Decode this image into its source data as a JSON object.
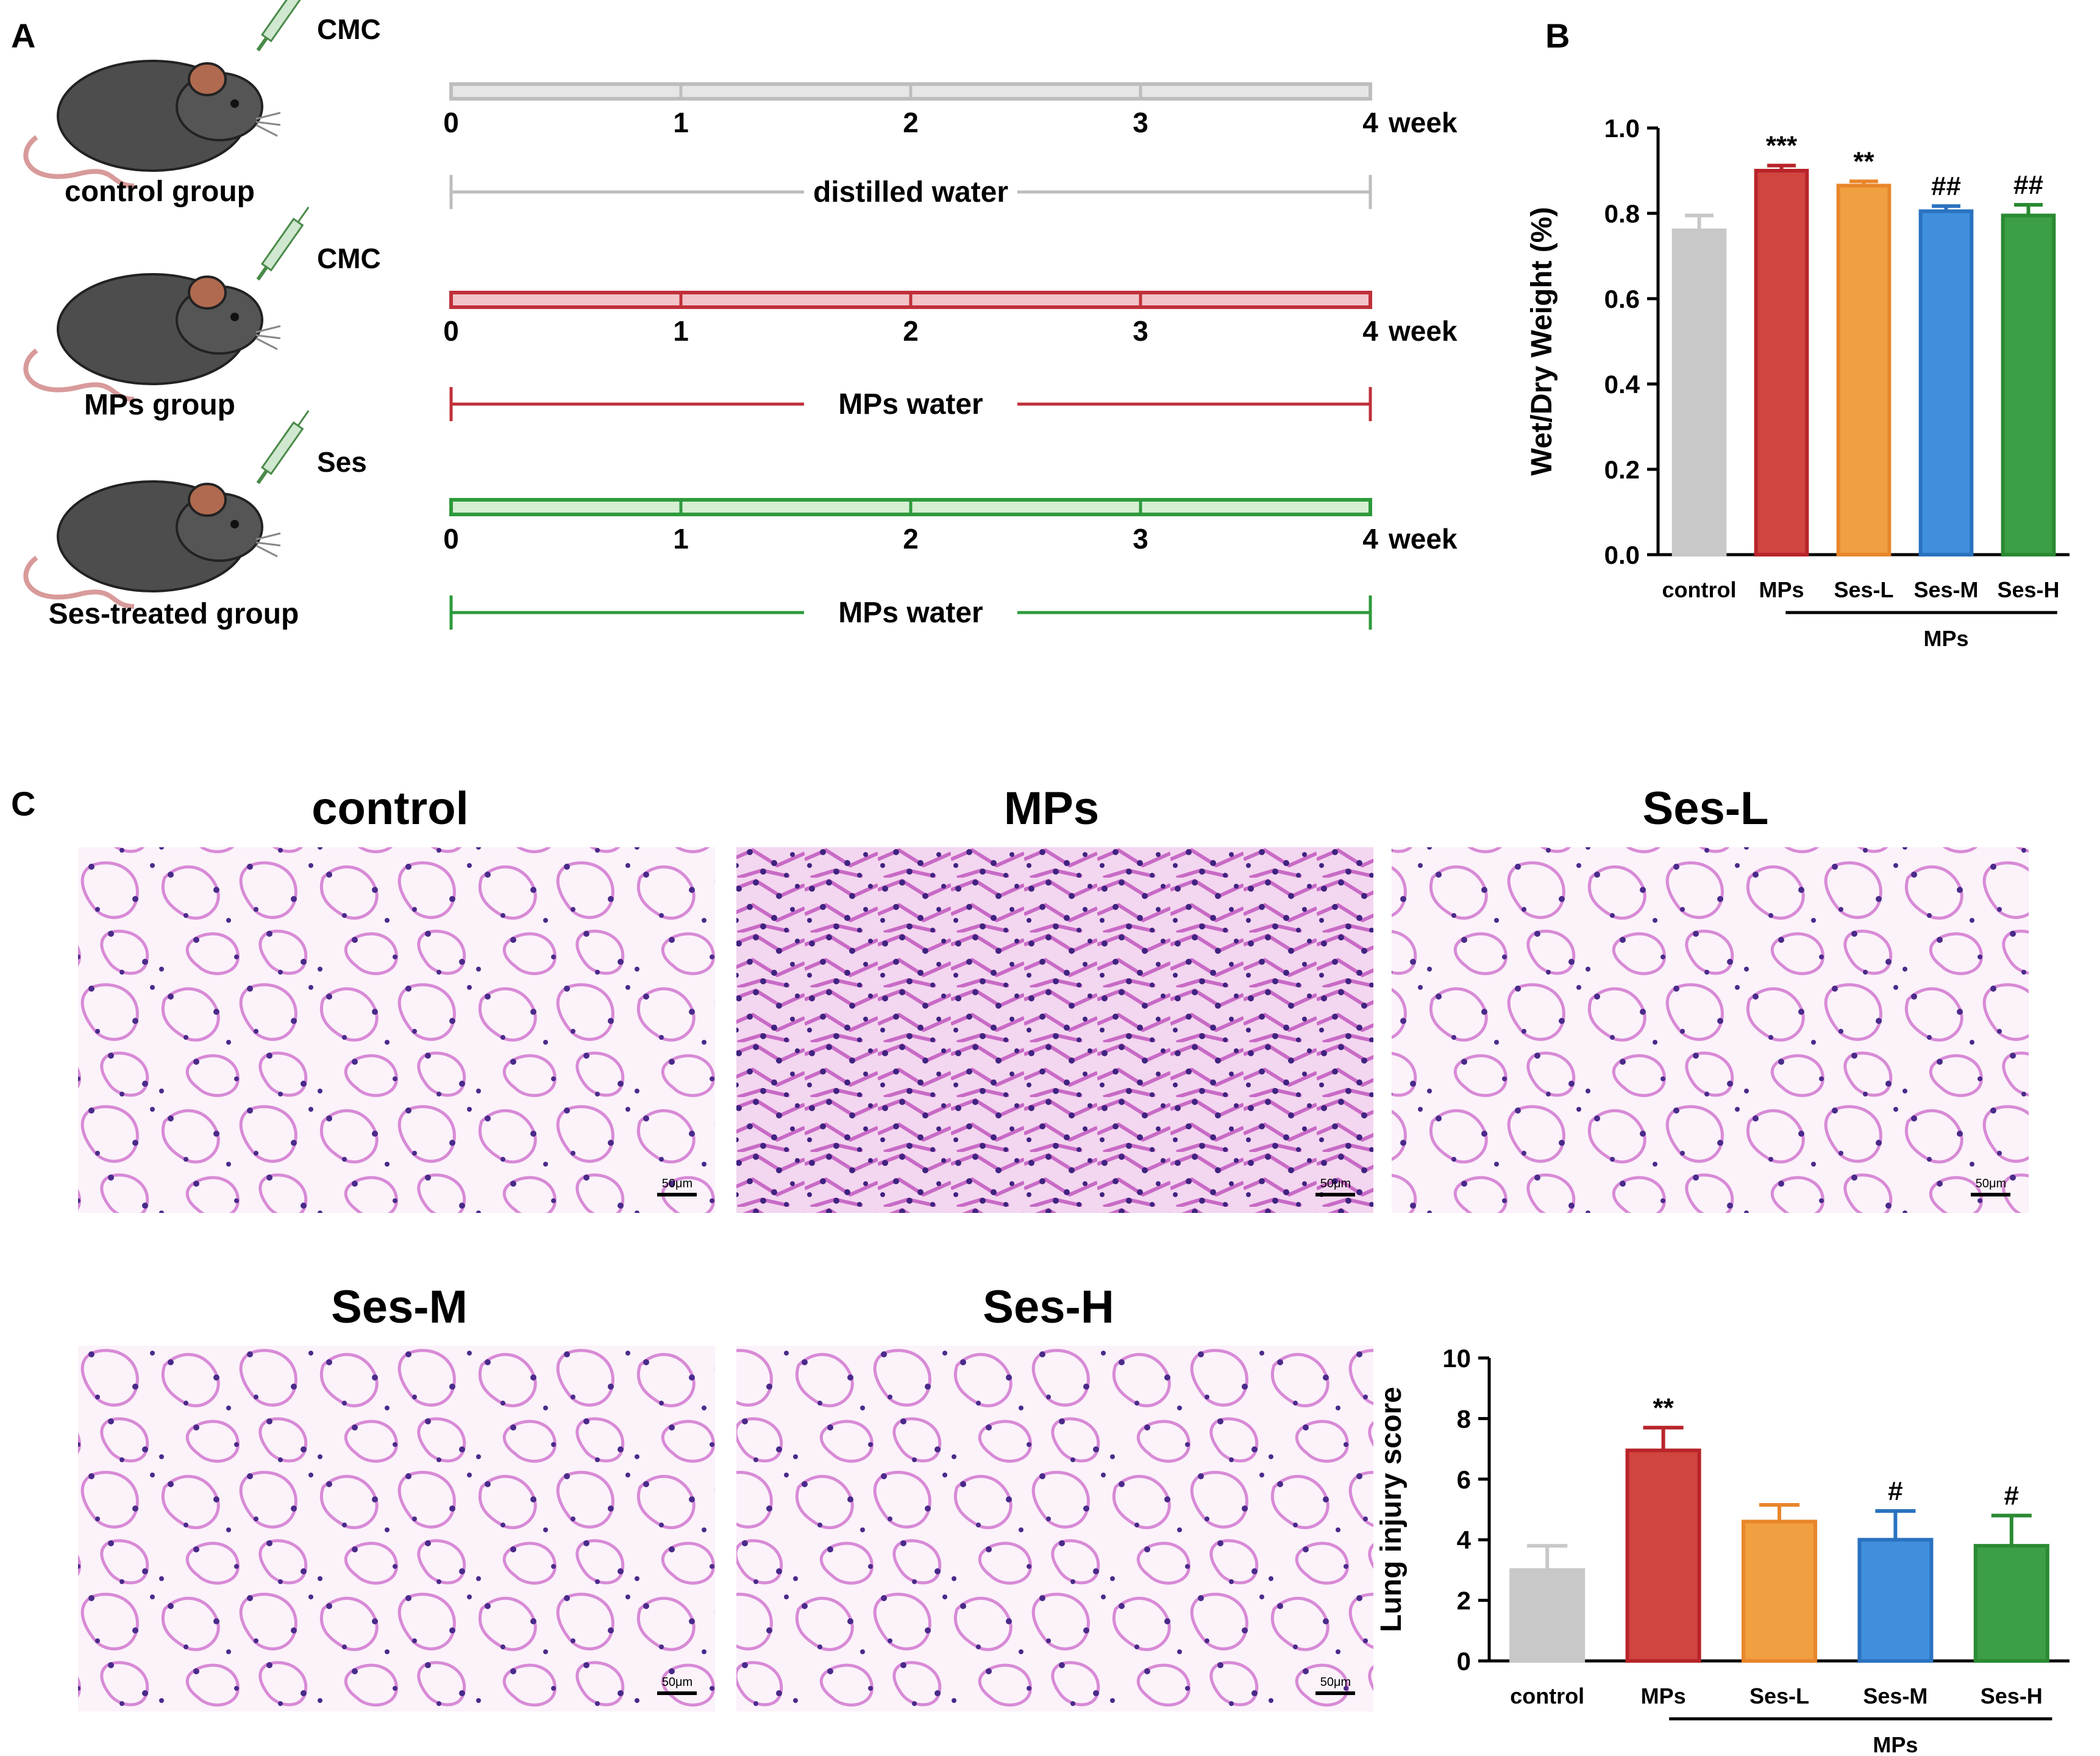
{
  "panelA": {
    "letter": "A",
    "week_unit": "week",
    "groups": [
      {
        "name": "control group",
        "agent": "CMC",
        "water": "distilled water",
        "color": "#bdbdbd",
        "fill": "#e6e6e6"
      },
      {
        "name": "MPs group",
        "agent": "CMC",
        "water": "MPs water",
        "color": "#c0303a",
        "fill": "#f2c4c8"
      },
      {
        "name": "Ses-treated group",
        "agent": "Ses",
        "water": "MPs water",
        "color": "#2e9a3c",
        "fill": "#d6efd2"
      }
    ],
    "weeks": [
      "0",
      "1",
      "2",
      "3",
      "4"
    ]
  },
  "panelB": {
    "letter": "B"
  },
  "panelC": {
    "letter": "C",
    "scale_bar": "50μm",
    "images": [
      {
        "title": "control"
      },
      {
        "title": "MPs"
      },
      {
        "title": "Ses-L"
      },
      {
        "title": "Ses-M"
      },
      {
        "title": "Ses-H"
      }
    ]
  },
  "chart_data": [
    {
      "type": "bar",
      "panel": "B",
      "categories": [
        "control",
        "MPs",
        "Ses-L",
        "Ses-M",
        "Ses-H"
      ],
      "values": [
        0.76,
        0.9,
        0.865,
        0.805,
        0.795
      ],
      "errors": [
        0.035,
        0.012,
        0.01,
        0.012,
        0.025
      ],
      "annotations": [
        "",
        "***",
        "**",
        "##",
        "##"
      ],
      "colors": [
        "#c8c8c8",
        "#d0453f",
        "#f0a040",
        "#3f8fdc",
        "#3c9e45"
      ],
      "edge_colors": [
        "#c8c8c8",
        "#b8242a",
        "#e8862a",
        "#2a72c0",
        "#2a8a32"
      ],
      "ylabel": "Wet/Dry Weight (%)",
      "ylim": [
        0,
        1.0
      ],
      "yticks": [
        "0.0",
        "0.2",
        "0.4",
        "0.6",
        "0.8",
        "1.0"
      ],
      "group_label": "MPs"
    },
    {
      "type": "bar",
      "panel": "C",
      "categories": [
        "control",
        "MPs",
        "Ses-L",
        "Ses-M",
        "Ses-H"
      ],
      "values": [
        3.0,
        6.95,
        4.6,
        4.0,
        3.8
      ],
      "errors": [
        0.8,
        0.75,
        0.55,
        0.95,
        1.0
      ],
      "annotations": [
        "",
        "**",
        "",
        "#",
        "#"
      ],
      "colors": [
        "#c8c8c8",
        "#d0453f",
        "#f0a040",
        "#3f8fdc",
        "#3c9e45"
      ],
      "edge_colors": [
        "#c8c8c8",
        "#b8242a",
        "#e8862a",
        "#2a72c0",
        "#2a8a32"
      ],
      "ylabel": "Lung injury score",
      "ylim": [
        0,
        10
      ],
      "yticks": [
        "0",
        "2",
        "4",
        "6",
        "8",
        "10"
      ],
      "group_label": "MPs"
    }
  ]
}
